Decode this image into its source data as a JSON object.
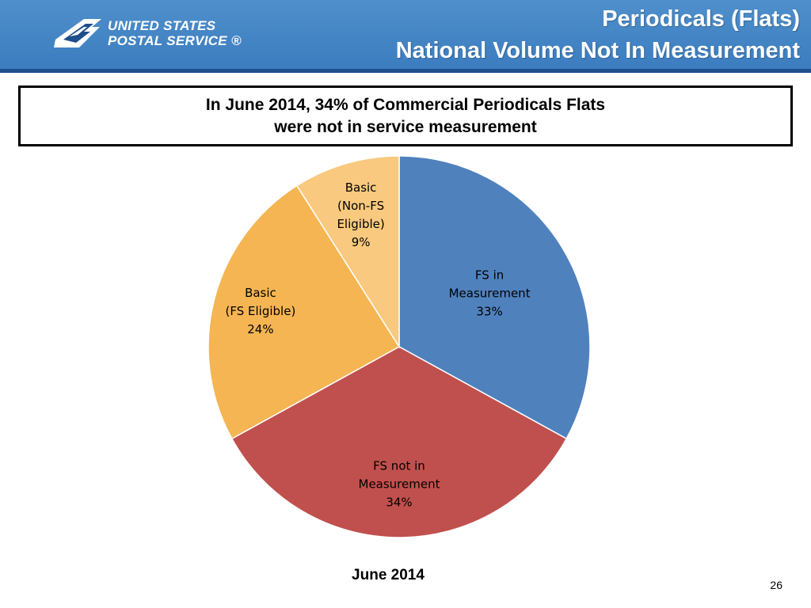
{
  "header": {
    "logo_line1": "UNITED STATES",
    "logo_line2": "POSTAL SERVICE ®",
    "title_line1": "Periodicals (Flats)",
    "title_line2": "National Volume Not In Measurement"
  },
  "callout": {
    "line1": "In June 2014, 34% of Commercial Periodicals Flats",
    "line2": "were not in service measurement"
  },
  "chart_data": {
    "type": "pie",
    "title": "",
    "xlabel": "June 2014",
    "slices": [
      {
        "name": "FS in Measurement",
        "value": 33,
        "label_lines": [
          "FS in",
          "Measurement",
          "33%"
        ],
        "color": "#4f81bd"
      },
      {
        "name": "FS not in Measurement",
        "value": 34,
        "label_lines": [
          "FS not in",
          "Measurement",
          "34%"
        ],
        "color": "#c0504d"
      },
      {
        "name": "Basic (FS Eligible)",
        "value": 24,
        "label_lines": [
          "Basic",
          "(FS Eligible)",
          "24%"
        ],
        "color": "#f5b553"
      },
      {
        "name": "Basic (Non-FS Eligible)",
        "value": 9,
        "label_lines": [
          "Basic",
          "(Non-FS",
          "Eligible)",
          "9%"
        ],
        "color": "#f9c97f"
      }
    ]
  },
  "footer": {
    "page_number": "26"
  }
}
